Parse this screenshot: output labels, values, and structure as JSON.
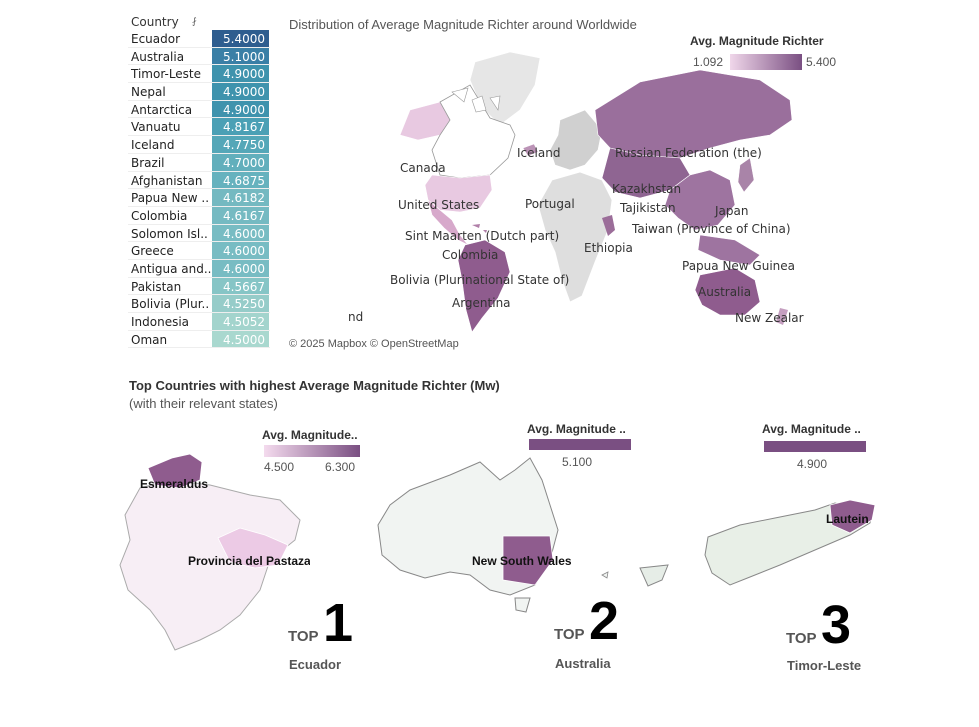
{
  "table": {
    "header": "Country",
    "sort_icon": "sort-descending-icon",
    "rows": [
      {
        "country": "Ecuador",
        "value": "5.4000",
        "color": "#2e5d8f"
      },
      {
        "country": "Australia",
        "value": "5.1000",
        "color": "#3a7fa6"
      },
      {
        "country": "Timor-Leste",
        "value": "4.9000",
        "color": "#3f93ad"
      },
      {
        "country": "Nepal",
        "value": "4.9000",
        "color": "#3f93ad"
      },
      {
        "country": "Antarctica",
        "value": "4.9000",
        "color": "#3f93ad"
      },
      {
        "country": "Vanuatu",
        "value": "4.8167",
        "color": "#4ba0b5"
      },
      {
        "country": "Iceland",
        "value": "4.7750",
        "color": "#55a7b8"
      },
      {
        "country": "Brazil",
        "value": "4.7000",
        "color": "#62afbc"
      },
      {
        "country": "Afghanistan",
        "value": "4.6875",
        "color": "#66b2be"
      },
      {
        "country": "Papua New ..",
        "value": "4.6182",
        "color": "#74b9c1"
      },
      {
        "country": "Colombia",
        "value": "4.6167",
        "color": "#75bac2"
      },
      {
        "country": "Solomon Isl..",
        "value": "4.6000",
        "color": "#78bcc3"
      },
      {
        "country": "Greece",
        "value": "4.6000",
        "color": "#78bcc3"
      },
      {
        "country": "Antigua and..",
        "value": "4.6000",
        "color": "#78bcc3"
      },
      {
        "country": "Pakistan",
        "value": "4.5667",
        "color": "#86c5c6"
      },
      {
        "country": "Bolivia (Plur..",
        "value": "4.5250",
        "color": "#96ccc9"
      },
      {
        "country": "Indonesia",
        "value": "4.5052",
        "color": "#a3d4cd"
      },
      {
        "country": "Oman",
        "value": "4.5000",
        "color": "#a9d8cf"
      }
    ]
  },
  "world_map": {
    "title": "Distribution of Average Magnitude Richter around Worldwide",
    "legend": {
      "title": "Avg. Magnitude Richter",
      "min": "1.092",
      "max": "5.400"
    },
    "labels": [
      "Canada",
      "Iceland",
      "Russian Federation (the)",
      "United States",
      "Portugal",
      "Kazakhstan",
      "Tajikistan",
      "Japan",
      "Taiwan (Province of China)",
      "Sint Maarten (Dutch part)",
      "Ethiopia",
      "Colombia",
      "Papua New Guinea",
      "Bolivia (Plurinational State of)",
      "Australia",
      "Argentina",
      "nd",
      "New Zealar"
    ],
    "attribution": "© 2025 Mapbox © OpenStreetMap"
  },
  "section": {
    "title": "Top Countries with highest Average Magnitude Richter (Mw)",
    "subtitle": "(with their relevant states)"
  },
  "tops": [
    {
      "rank": "1",
      "top_word": "TOP",
      "country": "Ecuador",
      "legend": {
        "title": "Avg. Magnitude..",
        "min": "4.500",
        "max": "6.300"
      },
      "states": [
        "Esmeraldus",
        "Provincia del Pastaza"
      ]
    },
    {
      "rank": "2",
      "top_word": "TOP",
      "country": "Australia",
      "legend": {
        "title": "Avg. Magnitude ..",
        "value": "5.100"
      },
      "states": [
        "New South Wales"
      ]
    },
    {
      "rank": "3",
      "top_word": "TOP",
      "country": "Timor-Leste",
      "legend": {
        "title": "Avg. Magnitude ..",
        "value": "4.900"
      },
      "states": [
        "Lautein"
      ]
    }
  ],
  "chart_data": [
    {
      "type": "table",
      "header": "Country",
      "columns": [
        "Country",
        "Avg. Magnitude Richter"
      ],
      "categories": [
        "Ecuador",
        "Australia",
        "Timor-Leste",
        "Nepal",
        "Antarctica",
        "Vanuatu",
        "Iceland",
        "Brazil",
        "Afghanistan",
        "Papua New ..",
        "Colombia",
        "Solomon Isl..",
        "Greece",
        "Antigua and..",
        "Pakistan",
        "Bolivia (Plur..",
        "Indonesia",
        "Oman"
      ],
      "values": [
        5.4,
        5.1,
        4.9,
        4.9,
        4.9,
        4.8167,
        4.775,
        4.7,
        4.6875,
        4.6182,
        4.6167,
        4.6,
        4.6,
        4.6,
        4.5667,
        4.525,
        4.5052,
        4.5
      ]
    },
    {
      "type": "heatmap",
      "title": "Distribution of Average Magnitude Richter around Worldwide",
      "legend_title": "Avg. Magnitude Richter",
      "range": [
        1.092,
        5.4
      ]
    }
  ]
}
